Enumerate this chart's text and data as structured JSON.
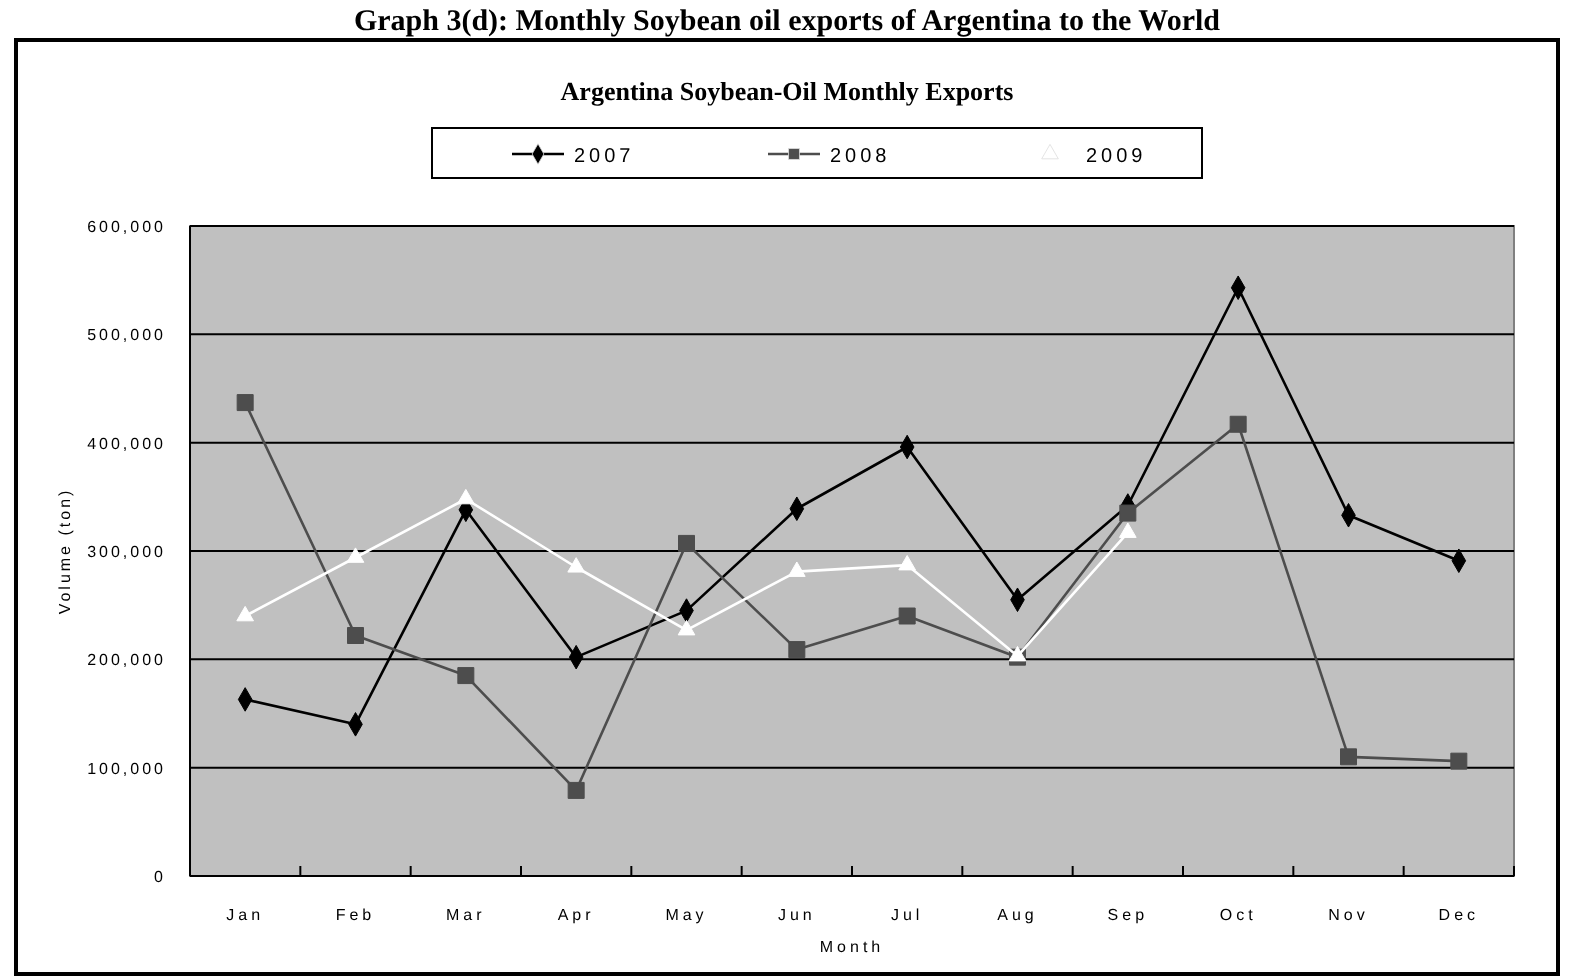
{
  "chart_data": {
    "type": "line",
    "title": "Argentina Soybean-Oil Monthly Exports",
    "annotations": [
      "Graph 3(d):  Monthly Soybean oil exports of Argentina to the World"
    ],
    "xlabel": "Month",
    "ylabel": "Volume (ton)",
    "categories": [
      "Jan",
      "Feb",
      "Mar",
      "Apr",
      "May",
      "Jun",
      "Jul",
      "Aug",
      "Sep",
      "Oct",
      "Nov",
      "Dec"
    ],
    "series": [
      {
        "name": "2007",
        "color": "#000000",
        "marker": "diamond",
        "values": [
          163000,
          140000,
          338000,
          202000,
          245000,
          339000,
          396000,
          255000,
          342000,
          543000,
          333000,
          291000
        ]
      },
      {
        "name": "2008",
        "color": "#4d4d4d",
        "marker": "square",
        "values": [
          437000,
          222000,
          185000,
          79000,
          307000,
          209000,
          240000,
          202000,
          335000,
          417000,
          110000,
          106000
        ]
      },
      {
        "name": "2009",
        "color": "#ffffff",
        "marker": "triangle",
        "values": [
          240000,
          294000,
          348000,
          285000,
          227000,
          281000,
          287000,
          203000,
          317000,
          null,
          null,
          null
        ]
      }
    ],
    "ylim": [
      0,
      600000
    ],
    "yticks": [
      {
        "value": 0,
        "label": "0"
      },
      {
        "value": 100000,
        "label": "100,000"
      },
      {
        "value": 200000,
        "label": "200,000"
      },
      {
        "value": 300000,
        "label": "300,000"
      },
      {
        "value": 400000,
        "label": "400,000"
      },
      {
        "value": 500000,
        "label": "500,000"
      },
      {
        "value": 600000,
        "label": "600,000"
      }
    ],
    "grid": "y",
    "legend": "top",
    "line_style": "solid"
  }
}
